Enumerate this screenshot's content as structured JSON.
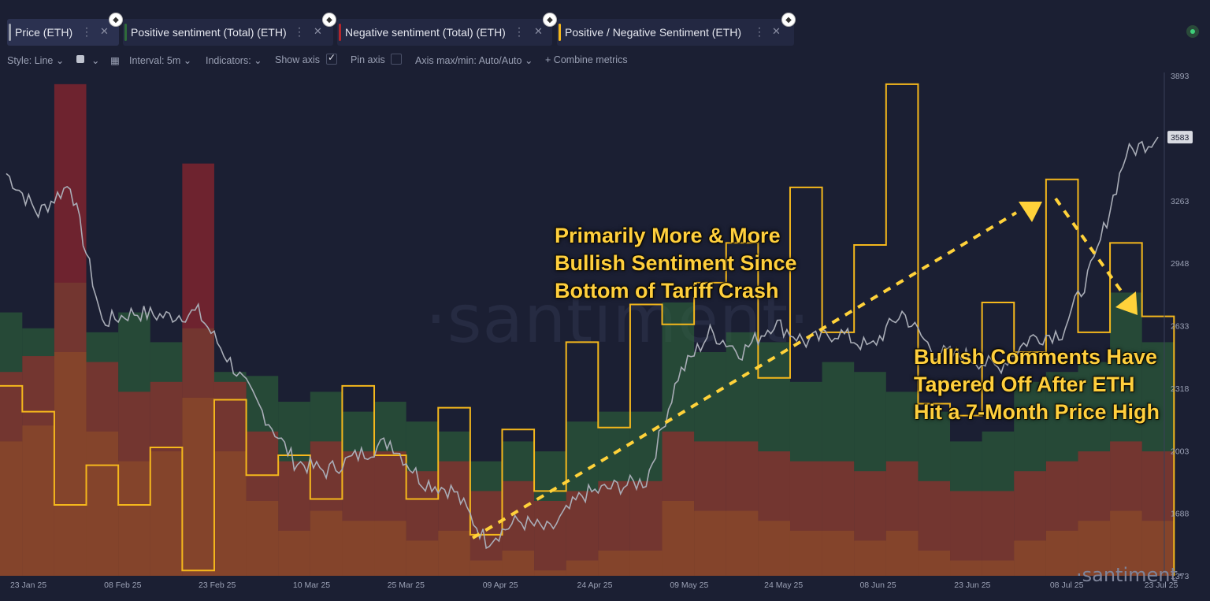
{
  "tabs": [
    {
      "label": "Price (ETH)",
      "color": "#9ba0ad"
    },
    {
      "label": "Positive sentiment (Total) (ETH)",
      "color": "#2f6b3a"
    },
    {
      "label": "Negative sentiment (Total) (ETH)",
      "color": "#b3262c"
    },
    {
      "label": "Positive / Negative Sentiment (ETH)",
      "color": "#f5b81c"
    }
  ],
  "toolbar": {
    "style": "Style: Line",
    "interval": "Interval: 5m",
    "indicators": "Indicators:",
    "show_axis": "Show axis",
    "pin_axis": "Pin axis",
    "axis_maxmin": "Axis max/min: Auto/Auto",
    "combine": "Combine metrics"
  },
  "annotations": {
    "left": [
      "Primarily More & More",
      "Bullish Sentiment Since",
      "Bottom of Tariff Crash"
    ],
    "right": [
      "Bullish Comments Have",
      "Tapered Off After ETH",
      "Hit a 7-Month Price High"
    ]
  },
  "watermark": "·santiment·",
  "watermark_small": "·santiment·",
  "chart_data": {
    "type": "line",
    "x_ticks": [
      "23 Jan 25",
      "08 Feb 25",
      "23 Feb 25",
      "10 Mar 25",
      "25 Mar 25",
      "09 Apr 25",
      "24 Apr 25",
      "09 May 25",
      "24 May 25",
      "08 Jun 25",
      "23 Jun 25",
      "08 Jul 25",
      "23 Jul 25"
    ],
    "y_ticks": [
      1373,
      1688,
      2003,
      2318,
      2633,
      2948,
      3263,
      3583,
      3893
    ],
    "ylim": [
      1373,
      3893
    ],
    "current_price_label": "3583",
    "grid": false,
    "series": [
      {
        "name": "Price (ETH)",
        "type": "line",
        "color": "#a9adb7",
        "x": [
          "23 Jan 25",
          "28 Jan 25",
          "03 Feb 25",
          "08 Feb 25",
          "13 Feb 25",
          "18 Feb 25",
          "23 Feb 25",
          "28 Feb 25",
          "05 Mar 25",
          "10 Mar 25",
          "15 Mar 25",
          "20 Mar 25",
          "25 Mar 25",
          "30 Mar 25",
          "04 Apr 25",
          "09 Apr 25",
          "14 Apr 25",
          "19 Apr 25",
          "24 Apr 25",
          "29 Apr 25",
          "04 May 25",
          "09 May 25",
          "14 May 25",
          "19 May 25",
          "24 May 25",
          "29 May 25",
          "03 Jun 25",
          "08 Jun 25",
          "13 Jun 25",
          "18 Jun 25",
          "23 Jun 25",
          "28 Jun 25",
          "03 Jul 25",
          "08 Jul 25",
          "13 Jul 25",
          "18 Jul 25",
          "23 Jul 25"
        ],
        "values": [
          3400,
          3200,
          3350,
          2650,
          2700,
          2680,
          2700,
          2450,
          2200,
          1950,
          1900,
          1980,
          2050,
          1850,
          1800,
          1550,
          1650,
          1600,
          1780,
          1820,
          1850,
          2380,
          2600,
          2500,
          2650,
          2550,
          2600,
          2520,
          2700,
          2500,
          2480,
          2420,
          2570,
          2600,
          2950,
          3500,
          3583
        ]
      },
      {
        "name": "Positive sentiment (Total) (ETH)",
        "type": "bar",
        "color": "#2f6b3a",
        "values": [
          2700,
          2620,
          2850,
          2600,
          2700,
          2550,
          2620,
          2400,
          2380,
          2250,
          2300,
          2200,
          2250,
          2150,
          2100,
          1950,
          2050,
          2000,
          2150,
          2200,
          2200,
          2750,
          2500,
          2600,
          2550,
          2350,
          2450,
          2400,
          2300,
          2200,
          2050,
          2100,
          2350,
          2400,
          2450,
          2800,
          2550
        ]
      },
      {
        "name": "Negative sentiment (Total) (ETH)",
        "type": "bar",
        "color": "#b3262c",
        "values": [
          2400,
          2480,
          3850,
          2450,
          2300,
          2350,
          3450,
          2350,
          2100,
          1950,
          2050,
          2000,
          2000,
          1900,
          1950,
          1800,
          1850,
          1750,
          1800,
          1850,
          1850,
          2100,
          2050,
          2050,
          2000,
          1950,
          1950,
          1900,
          1950,
          1850,
          1800,
          1800,
          1900,
          1950,
          2000,
          2050,
          2000
        ]
      },
      {
        "name": "Positive / Negative Sentiment (ETH)",
        "type": "step",
        "color": "#f5b81c",
        "values": [
          2330,
          2200,
          1730,
          1930,
          1730,
          2020,
          1400,
          2260,
          1880,
          1980,
          1760,
          2330,
          1980,
          1760,
          2220,
          1580,
          2110,
          1800,
          2550,
          2120,
          2740,
          2640,
          2850,
          3050,
          2370,
          3330,
          2600,
          3040,
          3850,
          2240,
          2180,
          2750,
          2500,
          3370,
          2600,
          3050,
          2680
        ]
      }
    ]
  }
}
